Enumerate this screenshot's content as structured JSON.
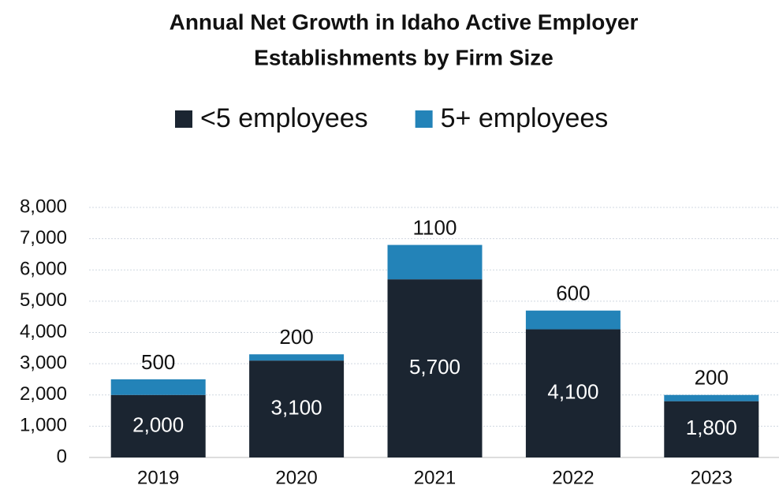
{
  "chart_data": {
    "type": "stacked_bar",
    "title": [
      "Annual Net Growth in Idaho Active Employer",
      "Establishments by Firm Size"
    ],
    "categories": [
      "2019",
      "2020",
      "2021",
      "2022",
      "2023"
    ],
    "series": [
      {
        "name": "<5 employees",
        "color": "#1b2531",
        "values": [
          2000,
          3100,
          5700,
          4100,
          1800
        ],
        "value_labels": [
          "2,000",
          "3,100",
          "5,700",
          "4,100",
          "1,800"
        ]
      },
      {
        "name": "5+ employees",
        "color": "#2383b8",
        "values": [
          500,
          200,
          1100,
          600,
          200
        ]
      }
    ],
    "ylim": [
      0,
      8000
    ],
    "yticks": [
      0,
      {
        "value": 1000,
        "label": "1,000"
      },
      {
        "value": 2000,
        "label": "2,000"
      },
      {
        "value": 3000,
        "label": "3,000"
      },
      {
        "value": 4000,
        "label": "4,000"
      },
      {
        "value": 5000,
        "label": "5,000"
      },
      {
        "value": 6000,
        "label": "6,000"
      },
      {
        "value": 7000,
        "label": "7,000"
      },
      {
        "value": 8000,
        "label": "8,000"
      }
    ],
    "grid": true,
    "legend": "top"
  }
}
